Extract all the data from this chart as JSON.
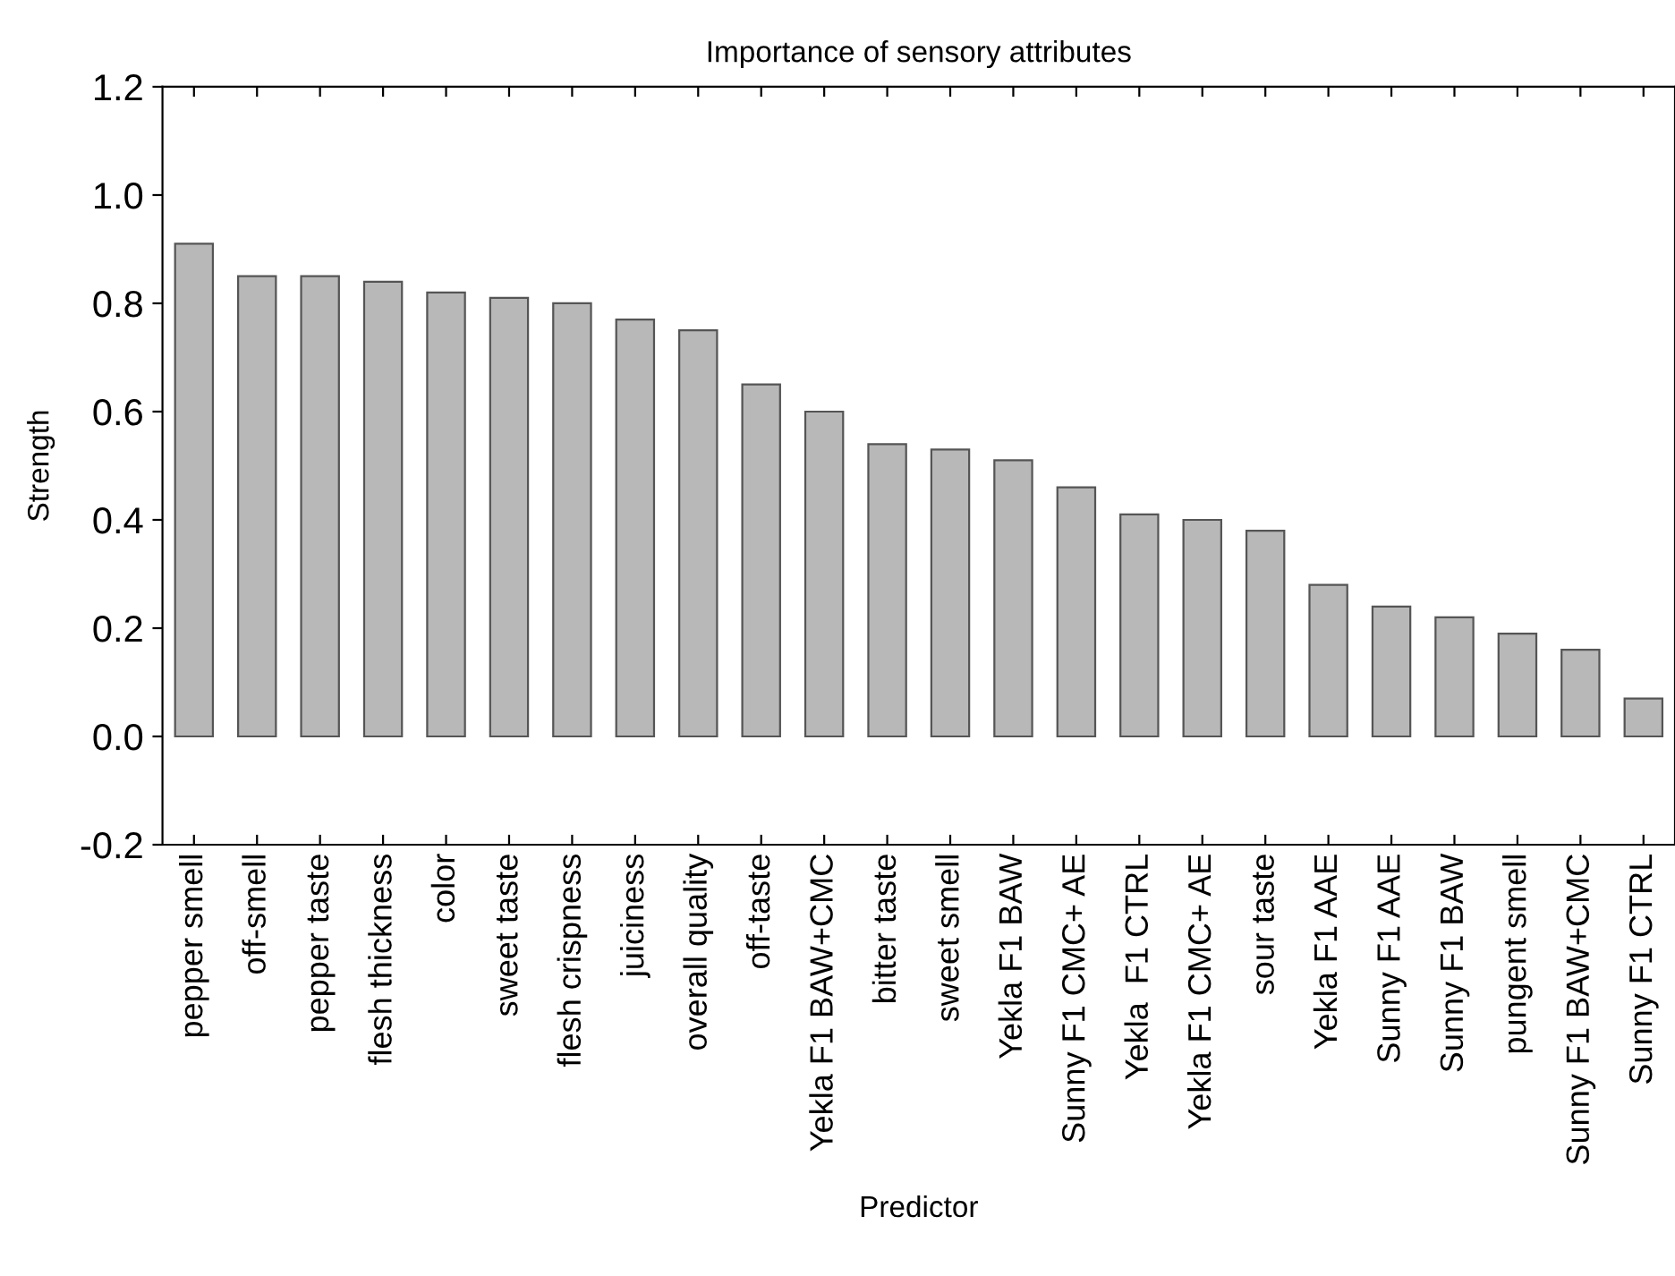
{
  "chart_data": {
    "type": "bar",
    "title": "Importance of sensory attributes",
    "xlabel": "Predictor",
    "ylabel": "Strength",
    "categories": [
      "pepper smell",
      "off-smell",
      "pepper taste",
      "flesh thickness",
      "color",
      "sweet taste",
      "flesh crispness",
      "juiciness",
      "overall quality",
      "off-taste",
      "Yekla F1 BAW+CMC",
      "bitter taste",
      "sweet smell",
      "Yekla F1 BAW",
      "Sunny F1 CMC+ AE",
      "Yekla  F1 CTRL",
      "Yekla F1 CMC+ AE",
      "sour taste",
      "Yekla F1 AAE",
      "Sunny F1 AAE",
      "Sunny F1 BAW",
      "pungent smell",
      "Sunny F1 BAW+CMC",
      "Sunny F1 CTRL"
    ],
    "values": [
      0.91,
      0.85,
      0.85,
      0.84,
      0.82,
      0.81,
      0.8,
      0.77,
      0.75,
      0.65,
      0.6,
      0.54,
      0.53,
      0.51,
      0.46,
      0.41,
      0.4,
      0.38,
      0.28,
      0.24,
      0.22,
      0.19,
      0.16,
      0.07
    ],
    "color": "#b8b8b8",
    "ylim": [
      -0.2,
      1.2
    ],
    "yticks": [
      {
        "value": -0.2,
        "label": "-0.2"
      },
      {
        "value": 0.0,
        "label": "0.0"
      },
      {
        "value": 0.2,
        "label": "0.2"
      },
      {
        "value": 0.4,
        "label": "0.4"
      },
      {
        "value": 0.6,
        "label": "0.6"
      },
      {
        "value": 0.8,
        "label": "0.8"
      },
      {
        "value": 1.0,
        "label": "1.0"
      },
      {
        "value": 1.2,
        "label": "1.2"
      }
    ],
    "grid": false
  }
}
